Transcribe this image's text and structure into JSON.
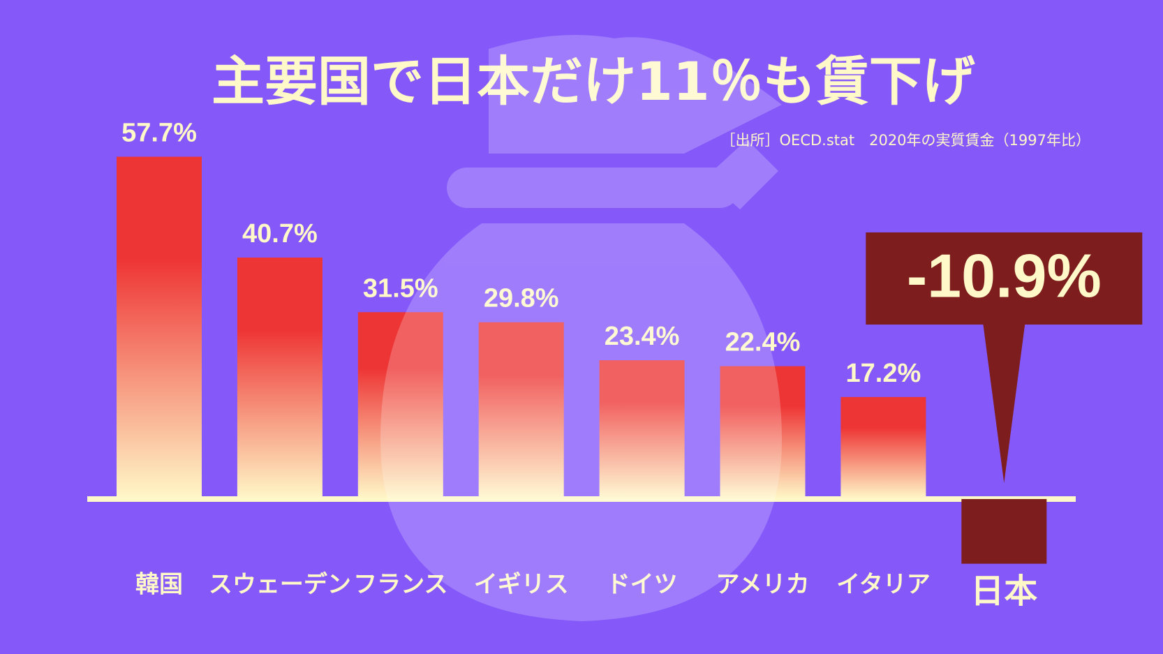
{
  "chart_data": {
    "type": "bar",
    "title": "主要国で日本だけ11％も賃下げ",
    "subtitle": "［出所］OECD.stat　2020年の実質賃金（1997年比）",
    "categories": [
      "韓国",
      "スウェーデン",
      "フランス",
      "イギリス",
      "ドイツ",
      "アメリカ",
      "イタリア",
      "日本"
    ],
    "values": [
      57.7,
      40.7,
      31.5,
      29.8,
      23.4,
      22.4,
      17.2,
      -10.9
    ],
    "value_labels": [
      "57.7%",
      "40.7%",
      "31.5%",
      "29.8%",
      "23.4%",
      "22.4%",
      "17.2%",
      "-10.9%"
    ],
    "colors": [
      "#ee3535",
      "#ee3535",
      "#ee3535",
      "#ee3535",
      "#ee3535",
      "#ee3535",
      "#ee3535",
      "#7d1d1d"
    ]
  }
}
